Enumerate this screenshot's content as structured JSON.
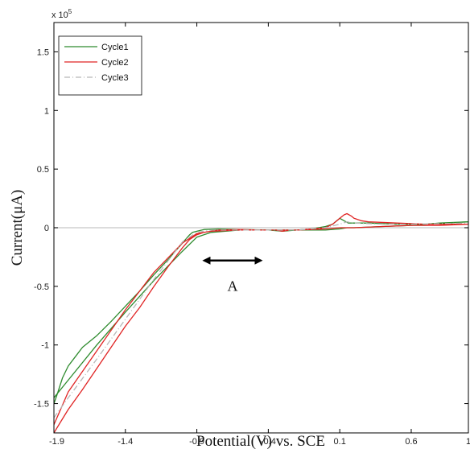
{
  "chart_data": {
    "type": "line",
    "title": "",
    "xlabel": "Potential(V) vs. SCE",
    "ylabel": "Current(μA)",
    "xlim": [
      -1.9,
      1.0
    ],
    "ylim": [
      -1.75,
      1.75
    ],
    "multiplier": {
      "base": "x 10",
      "exponent": "5"
    },
    "x_ticks": [
      -1.9,
      -1.4,
      -0.9,
      -0.4,
      0.1,
      0.6,
      1.0
    ],
    "x_tick_labels": [
      "-1.9",
      "-1.4",
      "-0.9",
      "-0.4",
      "0.1",
      "0.6",
      "1"
    ],
    "y_ticks": [
      1.5,
      1.0,
      0.5,
      0.0,
      -0.5,
      -1.0,
      -1.5
    ],
    "y_tick_labels": [
      "1.5",
      "1",
      "0.5",
      "0",
      "-0.5",
      "-1",
      "-1.5"
    ],
    "grid": false,
    "legend_position": "top-left",
    "annotation": {
      "text": "A",
      "arrow_from": -0.85,
      "arrow_to": -0.45,
      "arrow_y": -0.28,
      "label_y": -0.54
    },
    "series": [
      {
        "name": "Cycle1",
        "color": "#2e8b2e",
        "style": "solid",
        "x": [
          -1.9,
          -1.88,
          -1.84,
          -1.8,
          -1.75,
          -1.7,
          -1.6,
          -1.5,
          -1.4,
          -1.3,
          -1.2,
          -1.1,
          -1.0,
          -0.95,
          -0.93,
          -0.9,
          -0.85,
          -0.75,
          -0.6,
          -0.4,
          -0.3,
          -0.2,
          -0.1,
          0.0,
          0.05,
          0.08,
          0.1,
          0.13,
          0.16,
          0.2,
          0.3,
          0.5,
          0.7,
          1.0,
          0.8,
          0.6,
          0.4,
          0.2,
          0.15,
          0.1,
          0.0,
          -0.2,
          -0.35,
          -0.45,
          -0.6,
          -0.8,
          -0.9,
          -1.0,
          -1.2,
          -1.4,
          -1.6,
          -1.8,
          -1.9
        ],
        "y": [
          -1.5,
          -1.43,
          -1.28,
          -1.18,
          -1.1,
          -1.02,
          -0.92,
          -0.8,
          -0.67,
          -0.54,
          -0.4,
          -0.27,
          -0.13,
          -0.06,
          -0.04,
          -0.03,
          -0.015,
          -0.01,
          -0.015,
          -0.02,
          -0.03,
          -0.02,
          -0.01,
          0.01,
          0.03,
          0.06,
          0.08,
          0.06,
          0.04,
          0.04,
          0.04,
          0.03,
          0.03,
          0.05,
          0.04,
          0.02,
          0.01,
          0.0,
          0.0,
          -0.01,
          -0.02,
          -0.02,
          -0.02,
          -0.02,
          -0.02,
          -0.04,
          -0.08,
          -0.2,
          -0.45,
          -0.72,
          -1.0,
          -1.3,
          -1.45
        ]
      },
      {
        "name": "Cycle2",
        "color": "#e02424",
        "style": "solid",
        "x": [
          -1.9,
          -1.85,
          -1.8,
          -1.7,
          -1.6,
          -1.5,
          -1.4,
          -1.3,
          -1.2,
          -1.1,
          -1.0,
          -0.95,
          -0.9,
          -0.85,
          -0.75,
          -0.6,
          -0.45,
          -0.35,
          -0.3,
          -0.25,
          -0.2,
          -0.1,
          0.0,
          0.05,
          0.1,
          0.13,
          0.15,
          0.18,
          0.2,
          0.25,
          0.3,
          0.5,
          0.7,
          1.0,
          0.8,
          0.6,
          0.4,
          0.2,
          0.1,
          0.0,
          -0.2,
          -0.4,
          -0.6,
          -0.8,
          -0.9,
          -1.0,
          -1.2,
          -1.4,
          -1.6,
          -1.8,
          -1.9
        ],
        "y": [
          -1.75,
          -1.65,
          -1.55,
          -1.38,
          -1.2,
          -1.02,
          -0.84,
          -0.68,
          -0.5,
          -0.33,
          -0.17,
          -0.1,
          -0.06,
          -0.04,
          -0.02,
          -0.015,
          -0.02,
          -0.02,
          -0.03,
          -0.02,
          -0.02,
          -0.01,
          0.0,
          0.03,
          0.08,
          0.11,
          0.12,
          0.1,
          0.08,
          0.06,
          0.05,
          0.04,
          0.03,
          0.03,
          0.02,
          0.02,
          0.01,
          0.0,
          0.0,
          -0.01,
          -0.02,
          -0.02,
          -0.02,
          -0.03,
          -0.05,
          -0.13,
          -0.38,
          -0.7,
          -1.05,
          -1.4,
          -1.68
        ]
      },
      {
        "name": "Cycle3",
        "color": "#b8b8b8",
        "style": "dash-dot",
        "x": [
          -1.9,
          -1.8,
          -1.6,
          -1.4,
          -1.2,
          -1.0,
          -0.9,
          -0.8,
          -0.6,
          -0.4,
          -0.2,
          0.0,
          0.1,
          0.15,
          0.2,
          0.4,
          0.6,
          1.0
        ],
        "y": [
          -1.62,
          -1.45,
          -1.12,
          -0.78,
          -0.44,
          -0.12,
          -0.04,
          -0.02,
          -0.02,
          -0.02,
          -0.02,
          0.0,
          0.03,
          0.05,
          0.04,
          0.03,
          0.03,
          0.04
        ]
      }
    ]
  }
}
